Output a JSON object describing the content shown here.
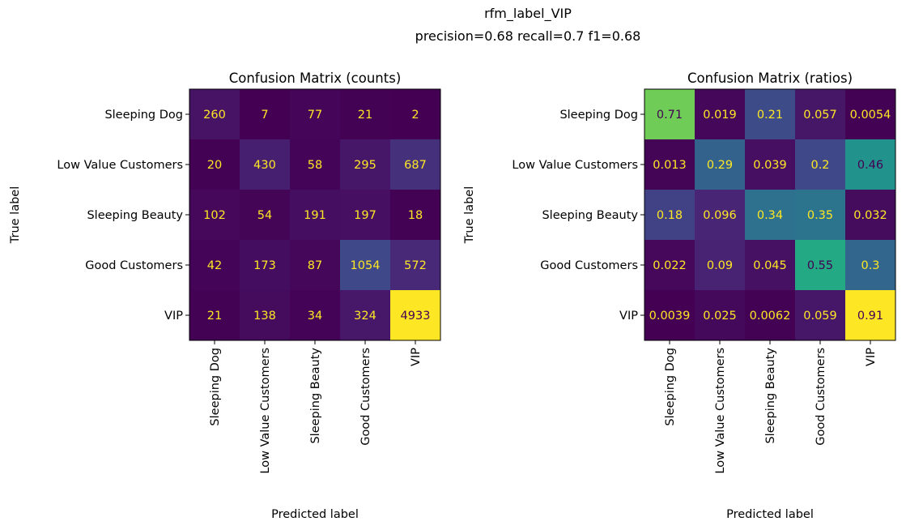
{
  "suptitle": {
    "line1": "rfm_label_VIP",
    "line2": "precision=0.68 recall=0.7 f1=0.68"
  },
  "chart_data": [
    {
      "type": "heatmap",
      "title": "Confusion Matrix (counts)",
      "xlabel": "Predicted label",
      "ylabel": "True label",
      "rows": [
        "Sleeping Dog",
        "Low Value Customers",
        "Sleeping Beauty",
        "Good Customers",
        "VIP"
      ],
      "columns": [
        "Sleeping Dog",
        "Low Value Customers",
        "Sleeping Beauty",
        "Good Customers",
        "VIP"
      ],
      "values": [
        [
          260,
          7,
          77,
          21,
          2
        ],
        [
          20,
          430,
          58,
          295,
          687
        ],
        [
          102,
          54,
          191,
          197,
          18
        ],
        [
          42,
          173,
          87,
          1054,
          572
        ],
        [
          21,
          138,
          34,
          324,
          4933
        ]
      ],
      "labels": [
        [
          "260",
          "7",
          "77",
          "21",
          "2"
        ],
        [
          "20",
          "430",
          "58",
          "295",
          "687"
        ],
        [
          "102",
          "54",
          "191",
          "197",
          "18"
        ],
        [
          "42",
          "173",
          "87",
          "1054",
          "572"
        ],
        [
          "21",
          "138",
          "34",
          "324",
          "4933"
        ]
      ],
      "vmin": 2,
      "vmax": 4933,
      "colormap": "viridis"
    },
    {
      "type": "heatmap",
      "title": "Confusion Matrix (ratios)",
      "xlabel": "Predicted label",
      "ylabel": "True label",
      "rows": [
        "Sleeping Dog",
        "Low Value Customers",
        "Sleeping Beauty",
        "Good Customers",
        "VIP"
      ],
      "columns": [
        "Sleeping Dog",
        "Low Value Customers",
        "Sleeping Beauty",
        "Good Customers",
        "VIP"
      ],
      "values": [
        [
          0.71,
          0.019,
          0.21,
          0.057,
          0.0054
        ],
        [
          0.013,
          0.29,
          0.039,
          0.2,
          0.46
        ],
        [
          0.18,
          0.096,
          0.34,
          0.35,
          0.032
        ],
        [
          0.022,
          0.09,
          0.045,
          0.55,
          0.3
        ],
        [
          0.0039,
          0.025,
          0.0062,
          0.059,
          0.91
        ]
      ],
      "labels": [
        [
          "0.71",
          "0.019",
          "0.21",
          "0.057",
          "0.0054"
        ],
        [
          "0.013",
          "0.29",
          "0.039",
          "0.2",
          "0.46"
        ],
        [
          "0.18",
          "0.096",
          "0.34",
          "0.35",
          "0.032"
        ],
        [
          "0.022",
          "0.09",
          "0.045",
          "0.55",
          "0.3"
        ],
        [
          "0.0039",
          "0.025",
          "0.0062",
          "0.059",
          "0.91"
        ]
      ],
      "vmin": 0.0039,
      "vmax": 0.91,
      "colormap": "viridis"
    }
  ]
}
